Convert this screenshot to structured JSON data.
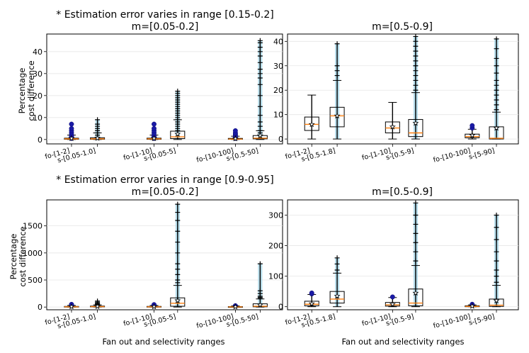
{
  "figure": {
    "xlabel": "Fan out and selectivity ranges",
    "ylabel_line1": "Percentage",
    "ylabel_line2": "cost difference"
  },
  "chart_data": [
    {
      "type": "box",
      "suptitle": "* Estimation error varies in range [0.15-0.2]",
      "title": "m=[0.05-0.2]",
      "ylim": [
        -2,
        48
      ],
      "yticks": [
        0,
        10,
        20,
        30,
        40
      ],
      "categories": [
        "fo-[1-2]",
        "s-[0.05-1.0]",
        "fo-[1-10]",
        "s-[0.05-5]",
        "fo-[10-100]",
        "s-[0.5-50]"
      ],
      "boxes": [
        {
          "label": "fo-[1-2]",
          "min": 0,
          "q1": 0.1,
          "median": 0.3,
          "q3": 0.6,
          "max": 2.0,
          "mean": 0.5,
          "outliers": [
            0.5,
            1,
            1.5,
            2,
            3,
            4,
            5,
            7
          ]
        },
        {
          "label": "s-[0.05-1.0]",
          "min": 0,
          "q1": 0.1,
          "median": 0.3,
          "q3": 0.8,
          "max": 3.0,
          "mean": 0.6,
          "outliers": [
            1,
            2,
            3,
            4,
            5,
            6,
            7,
            9
          ]
        },
        {
          "label": "fo-[1-10]",
          "min": 0,
          "q1": 0.1,
          "median": 0.3,
          "q3": 0.6,
          "max": 2.0,
          "mean": 0.5,
          "outliers": [
            0.5,
            1,
            1.5,
            2,
            3,
            4,
            5,
            7
          ]
        },
        {
          "label": "s-[0.05-5]",
          "min": 0,
          "q1": 0.4,
          "median": 1.2,
          "q3": 3.8,
          "max": 9.0,
          "mean": 2.5,
          "outliers": [
            4,
            5,
            6,
            7,
            8,
            9,
            10,
            11,
            12,
            13,
            14,
            15,
            16,
            17,
            18,
            19,
            20,
            21,
            22
          ]
        },
        {
          "label": "fo-[10-100]",
          "min": 0,
          "q1": 0.1,
          "median": 0.2,
          "q3": 0.5,
          "max": 1.5,
          "mean": 0.4,
          "outliers": [
            0.5,
            1,
            1.5,
            2,
            2.5,
            3,
            4
          ]
        },
        {
          "label": "s-[0.5-50]",
          "min": 0,
          "q1": 0.3,
          "median": 0.6,
          "q3": 1.8,
          "max": 4.0,
          "mean": 1.8,
          "outliers": [
            2,
            3,
            4,
            6,
            8,
            11,
            15,
            20,
            25,
            28,
            30,
            32,
            35,
            38,
            40,
            42,
            44,
            45
          ]
        }
      ]
    },
    {
      "type": "box",
      "title": "m=[0.5-0.9]",
      "ylim": [
        -2,
        43
      ],
      "yticks": [
        0,
        10,
        20,
        30,
        40
      ],
      "categories": [
        "fo-[1-2]",
        "s-[0.5-1.8]",
        "fo-[1-10]",
        "s-[0.5-9]",
        "fo-[10-100]",
        "s-[5-90]"
      ],
      "boxes": [
        {
          "label": "fo-[1-2]",
          "min": 0,
          "q1": 3.5,
          "median": 6.0,
          "q3": 9.0,
          "max": 18.0,
          "mean": 6.0,
          "outliers": []
        },
        {
          "label": "s-[0.5-1.8]",
          "min": 0,
          "q1": 5.0,
          "median": 9.5,
          "q3": 13.0,
          "max": 24.0,
          "mean": 9.5,
          "outliers": [
            26,
            28,
            30,
            39
          ]
        },
        {
          "label": "fo-[1-10]",
          "min": 0,
          "q1": 2.5,
          "median": 4.5,
          "q3": 7.0,
          "max": 15.0,
          "mean": 5.0,
          "outliers": []
        },
        {
          "label": "s-[0.5-9]",
          "min": 0,
          "q1": 1.0,
          "median": 2.5,
          "q3": 8.0,
          "max": 19.0,
          "mean": 6.5,
          "outliers": [
            20,
            22,
            24,
            26,
            28,
            30,
            32,
            34,
            36,
            38,
            40,
            42
          ]
        },
        {
          "label": "fo-[10-100]",
          "min": 0,
          "q1": 0.5,
          "median": 1.0,
          "q3": 2.0,
          "max": 4.0,
          "mean": 1.5,
          "outliers": [
            4.5,
            5.5
          ]
        },
        {
          "label": "s-[5-90]",
          "min": 0,
          "q1": 0.0,
          "median": 0.3,
          "q3": 5.0,
          "max": 11.0,
          "mean": 4.5,
          "outliers": [
            12,
            14,
            16,
            18,
            20,
            22,
            24,
            27,
            30,
            33,
            37,
            41
          ]
        }
      ]
    },
    {
      "type": "box",
      "suptitle": "* Estimation error varies in range [0.9-0.95]",
      "title": "m=[0.05-0.2]",
      "ylim": [
        -50,
        1980
      ],
      "yticks": [
        0,
        500,
        1000,
        1500
      ],
      "categories": [
        "fo-[1-2]",
        "s-[0.05-1.0]",
        "fo-[1-10]",
        "s-[0.05-5]",
        "fo-[10-100]",
        "s-[0.5-50]"
      ],
      "boxes": [
        {
          "label": "fo-[1-2]",
          "min": 0,
          "q1": 2,
          "median": 5,
          "q3": 12,
          "max": 30,
          "mean": 8,
          "outliers": [
            35,
            40,
            45,
            50
          ]
        },
        {
          "label": "s-[0.05-1.0]",
          "min": 0,
          "q1": 3,
          "median": 8,
          "q3": 18,
          "max": 40,
          "mean": 12,
          "outliers": [
            50,
            60,
            70,
            90,
            110
          ]
        },
        {
          "label": "fo-[1-10]",
          "min": 0,
          "q1": 2,
          "median": 5,
          "q3": 12,
          "max": 30,
          "mean": 8,
          "outliers": [
            35,
            40,
            45
          ]
        },
        {
          "label": "s-[0.05-5]",
          "min": 0,
          "q1": 15,
          "median": 70,
          "q3": 170,
          "max": 400,
          "mean": 120,
          "outliers": [
            450,
            500,
            600,
            700,
            800,
            1000,
            1200,
            1400,
            1600,
            1750,
            1900
          ]
        },
        {
          "label": "fo-[10-100]",
          "min": 0,
          "q1": 1,
          "median": 3,
          "q3": 8,
          "max": 20,
          "mean": 5,
          "outliers": [
            22,
            25
          ]
        },
        {
          "label": "s-[0.5-50]",
          "min": 0,
          "q1": 5,
          "median": 15,
          "q3": 60,
          "max": 150,
          "mean": 40,
          "outliers": [
            160,
            180,
            200,
            250,
            300,
            800
          ]
        }
      ]
    },
    {
      "type": "box",
      "title": "m=[0.5-0.9]",
      "ylim": [
        -10,
        350
      ],
      "yticks": [
        0,
        100,
        200,
        300
      ],
      "categories": [
        "fo-[1-2]",
        "s-[0.5-1.8]",
        "fo-[1-10]",
        "s-[0.5-9]",
        "fo-[10-100]",
        "s-[5-90]"
      ],
      "boxes": [
        {
          "label": "fo-[1-2]",
          "min": 0,
          "q1": 3,
          "median": 8,
          "q3": 18,
          "max": 40,
          "mean": 10,
          "outliers": [
            42,
            45
          ]
        },
        {
          "label": "s-[0.5-1.8]",
          "min": 0,
          "q1": 12,
          "median": 25,
          "q3": 50,
          "max": 110,
          "mean": 35,
          "outliers": [
            120,
            140,
            160
          ]
        },
        {
          "label": "fo-[1-10]",
          "min": 0,
          "q1": 2,
          "median": 6,
          "q3": 14,
          "max": 30,
          "mean": 8,
          "outliers": [
            32
          ]
        },
        {
          "label": "s-[0.5-9]",
          "min": 0,
          "q1": 3,
          "median": 12,
          "q3": 58,
          "max": 135,
          "mean": 45,
          "outliers": [
            150,
            180,
            210,
            240,
            270,
            300,
            340
          ]
        },
        {
          "label": "fo-[10-100]",
          "min": 0,
          "q1": 0,
          "median": 1,
          "q3": 3,
          "max": 6,
          "mean": 2,
          "outliers": [
            8
          ]
        },
        {
          "label": "s-[5-90]",
          "min": 0,
          "q1": 1,
          "median": 5,
          "q3": 25,
          "max": 70,
          "mean": 20,
          "outliers": [
            80,
            100,
            120,
            150,
            180,
            220,
            260,
            300
          ]
        }
      ]
    }
  ]
}
